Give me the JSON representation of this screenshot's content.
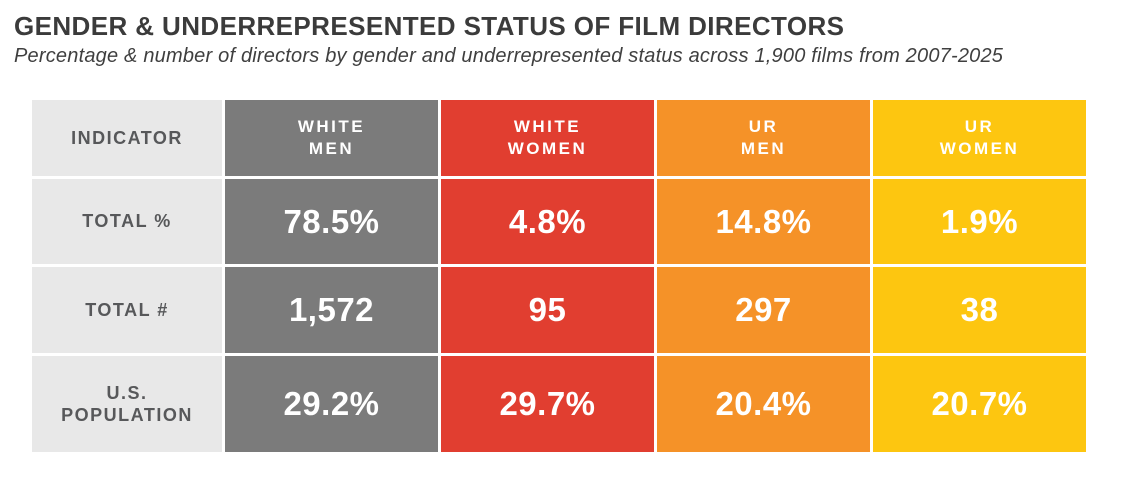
{
  "header": {
    "title": "GENDER & UNDERREPRESENTED STATUS OF FILM DIRECTORS",
    "subtitle": "Percentage & number of directors by gender and underrepresented status across 1,900 films from 2007-2025"
  },
  "colors": {
    "white_men_color": "#7B7B7B",
    "white_women_color": "#E13E30",
    "ur_men_color": "#F59228",
    "ur_women_color": "#FDC610",
    "indicator_bg": "#E8E8E8",
    "indicator_text": "#57585A",
    "cell_text": "#FFFFFF",
    "title_text": "#3B3B3B"
  },
  "table": {
    "indicator_header": "INDICATOR",
    "columns": [
      {
        "line1": "WHITE",
        "line2": "MEN"
      },
      {
        "line1": "WHITE",
        "line2": "WOMEN"
      },
      {
        "line1": "UR",
        "line2": "MEN"
      },
      {
        "line1": "UR",
        "line2": "WOMEN"
      }
    ],
    "rows": [
      {
        "label": "TOTAL %",
        "values": [
          "78.5%",
          "4.8%",
          "14.8%",
          "1.9%"
        ]
      },
      {
        "label": "TOTAL #",
        "values": [
          "1,572",
          "95",
          "297",
          "38"
        ]
      },
      {
        "label": "U.S. POPULATION",
        "values": [
          "29.2%",
          "29.7%",
          "20.4%",
          "20.7%"
        ]
      }
    ]
  },
  "chart_data": {
    "type": "table",
    "title": "GENDER & UNDERREPRESENTED STATUS OF FILM DIRECTORS",
    "subtitle": "Percentage & number of directors by gender and underrepresented status across 1,900 films from 2007-2025",
    "categories": [
      "White Men",
      "White Women",
      "UR Men",
      "UR Women"
    ],
    "series": [
      {
        "name": "Total %",
        "values": [
          78.5,
          4.8,
          14.8,
          1.9
        ],
        "unit": "%"
      },
      {
        "name": "Total #",
        "values": [
          1572,
          95,
          297,
          38
        ],
        "unit": "count"
      },
      {
        "name": "U.S. Population",
        "values": [
          29.2,
          29.7,
          20.4,
          20.7
        ],
        "unit": "%"
      }
    ],
    "total_films": 1900,
    "year_range": "2007-2025",
    "category_colors": [
      "#7B7B7B",
      "#E13E30",
      "#F59228",
      "#FDC610"
    ]
  }
}
